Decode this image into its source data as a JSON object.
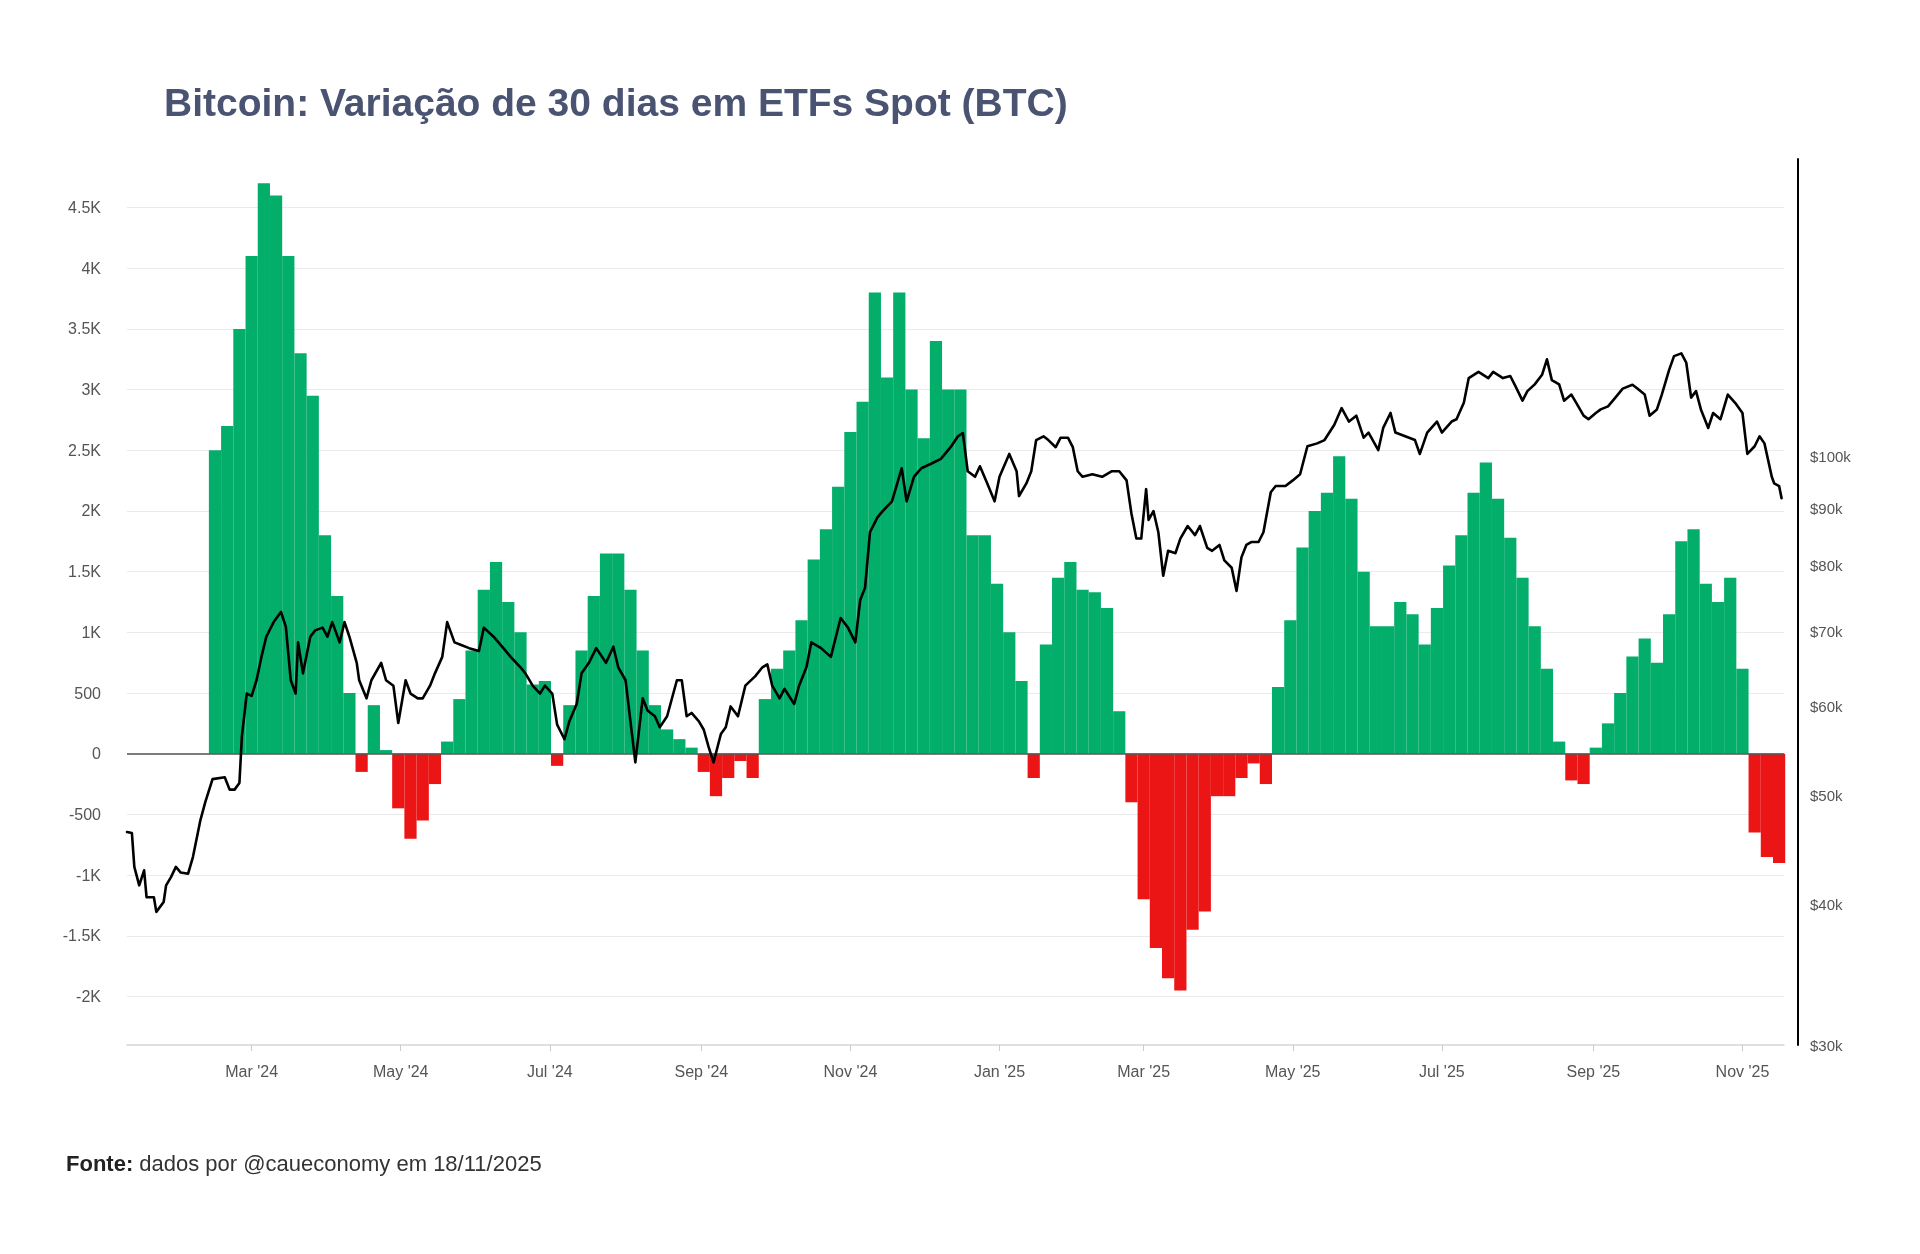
{
  "chart_data": {
    "type": "bar",
    "title": "Bitcoin: Variação de 30 dias em ETFs Spot (BTC)",
    "annotations": [
      "Fonte: dados por @caueconomy em 18/11/2025"
    ],
    "series": [
      {
        "x": [
          "2024-02-15",
          "2024-02-20",
          "2024-02-25",
          "2024-03-01",
          "2024-03-06",
          "2024-03-11",
          "2024-03-16",
          "2024-03-21",
          "2024-03-26",
          "2024-03-31",
          "2024-04-05",
          "2024-04-10",
          "2024-04-15",
          "2024-04-20",
          "2024-04-25",
          "2024-04-30",
          "2024-05-05",
          "2024-05-10",
          "2024-05-15",
          "2024-05-20",
          "2024-05-25",
          "2024-05-30",
          "2024-06-04",
          "2024-06-09",
          "2024-06-14",
          "2024-06-19",
          "2024-06-24",
          "2024-06-29",
          "2024-07-04",
          "2024-07-09",
          "2024-07-14",
          "2024-07-19",
          "2024-07-24",
          "2024-07-29",
          "2024-08-03",
          "2024-08-08",
          "2024-08-13",
          "2024-08-18",
          "2024-08-23",
          "2024-08-28",
          "2024-09-02",
          "2024-09-07",
          "2024-09-12",
          "2024-09-17",
          "2024-09-22",
          "2024-09-27",
          "2024-10-02",
          "2024-10-07",
          "2024-10-12",
          "2024-10-17",
          "2024-10-22",
          "2024-10-27",
          "2024-11-01",
          "2024-11-06",
          "2024-11-11",
          "2024-11-16",
          "2024-11-21",
          "2024-11-26",
          "2024-12-01",
          "2024-12-06",
          "2024-12-11",
          "2024-12-16",
          "2024-12-21",
          "2024-12-26",
          "2024-12-31",
          "2025-01-05",
          "2025-01-10",
          "2025-01-15",
          "2025-01-20",
          "2025-01-25",
          "2025-01-30",
          "2025-02-04",
          "2025-02-09",
          "2025-02-14",
          "2025-02-19",
          "2025-02-24",
          "2025-03-01",
          "2025-03-06",
          "2025-03-11",
          "2025-03-16",
          "2025-03-21",
          "2025-03-26",
          "2025-03-31",
          "2025-04-05",
          "2025-04-10",
          "2025-04-15",
          "2025-04-20",
          "2025-04-25",
          "2025-04-30",
          "2025-05-05",
          "2025-05-10",
          "2025-05-15",
          "2025-05-20",
          "2025-05-25",
          "2025-05-30",
          "2025-06-04",
          "2025-06-09",
          "2025-06-14",
          "2025-06-19",
          "2025-06-24",
          "2025-06-29",
          "2025-07-04",
          "2025-07-09",
          "2025-07-14",
          "2025-07-19",
          "2025-07-24",
          "2025-07-29",
          "2025-08-03",
          "2025-08-08",
          "2025-08-13",
          "2025-08-18",
          "2025-08-23",
          "2025-08-28",
          "2025-09-02",
          "2025-09-07",
          "2025-09-12",
          "2025-09-17",
          "2025-09-22",
          "2025-09-27",
          "2025-10-02",
          "2025-10-07",
          "2025-10-12",
          "2025-10-17",
          "2025-10-22",
          "2025-10-27",
          "2025-11-01",
          "2025-11-06",
          "2025-11-11",
          "2025-11-16"
        ],
        "values": [
          2500,
          2700,
          3500,
          4100,
          4700,
          4600,
          4100,
          3300,
          2950,
          1800,
          1300,
          500,
          -150,
          400,
          30,
          -450,
          -700,
          -550,
          -250,
          100,
          450,
          850,
          1350,
          1580,
          1250,
          1000,
          570,
          600,
          -100,
          400,
          850,
          1300,
          1650,
          1650,
          1350,
          850,
          400,
          200,
          120,
          50,
          -150,
          -350,
          -200,
          -60,
          -200,
          450,
          700,
          850,
          1100,
          1600,
          1850,
          2200,
          2650,
          2900,
          3800,
          3100,
          3800,
          3000,
          2600,
          3400,
          3000,
          3000,
          1800,
          1800,
          1400,
          1000,
          600,
          -200,
          900,
          1450,
          1580,
          1350,
          1330,
          1200,
          350,
          -400,
          -1200,
          -1600,
          -1850,
          -1950,
          -1450,
          -1300,
          -350,
          -350,
          -200,
          -80,
          -250,
          550,
          1100,
          1700,
          2000,
          2150,
          2450,
          2100,
          1500,
          1050,
          1050,
          1250,
          1150,
          900,
          1200,
          1550,
          1800,
          2150,
          2400,
          2100,
          1780,
          1450,
          1050,
          700,
          100,
          -220,
          -250,
          50,
          250,
          500,
          800,
          950,
          750,
          1150,
          1750,
          1850,
          1400,
          1250,
          1450,
          700,
          -650,
          -850,
          -900
        ],
        "colors": [
          "#03ad6a",
          "#03ad6a",
          "#03ad6a",
          "#03ad6a",
          "#03ad6a",
          "#03ad6a",
          "#03ad6a",
          "#03ad6a",
          "#03ad6a",
          "#03ad6a",
          "#03ad6a",
          "#03ad6a",
          "#eb1515",
          "#03ad6a",
          "#03ad6a",
          "#eb1515",
          "#eb1515",
          "#eb1515",
          "#eb1515",
          "#03ad6a",
          "#03ad6a",
          "#03ad6a",
          "#03ad6a",
          "#03ad6a",
          "#03ad6a",
          "#03ad6a",
          "#03ad6a",
          "#03ad6a",
          "#eb1515",
          "#03ad6a",
          "#03ad6a",
          "#03ad6a",
          "#03ad6a",
          "#03ad6a",
          "#03ad6a",
          "#03ad6a",
          "#03ad6a",
          "#03ad6a",
          "#03ad6a",
          "#03ad6a",
          "#eb1515",
          "#eb1515",
          "#eb1515",
          "#eb1515",
          "#eb1515",
          "#03ad6a",
          "#03ad6a",
          "#03ad6a",
          "#03ad6a",
          "#03ad6a",
          "#03ad6a",
          "#03ad6a",
          "#03ad6a",
          "#03ad6a",
          "#03ad6a",
          "#03ad6a",
          "#03ad6a",
          "#03ad6a",
          "#03ad6a",
          "#03ad6a",
          "#03ad6a",
          "#03ad6a",
          "#03ad6a",
          "#03ad6a",
          "#03ad6a",
          "#03ad6a",
          "#03ad6a",
          "#eb1515",
          "#03ad6a",
          "#03ad6a",
          "#03ad6a",
          "#03ad6a",
          "#03ad6a",
          "#03ad6a",
          "#03ad6a",
          "#eb1515",
          "#eb1515",
          "#eb1515",
          "#eb1515",
          "#eb1515",
          "#eb1515",
          "#eb1515",
          "#eb1515",
          "#eb1515",
          "#eb1515",
          "#eb1515",
          "#eb1515",
          "#03ad6a",
          "#03ad6a",
          "#03ad6a",
          "#03ad6a",
          "#03ad6a",
          "#03ad6a",
          "#03ad6a",
          "#03ad6a",
          "#03ad6a",
          "#03ad6a",
          "#03ad6a",
          "#03ad6a",
          "#03ad6a",
          "#03ad6a",
          "#03ad6a",
          "#03ad6a",
          "#03ad6a",
          "#03ad6a",
          "#03ad6a",
          "#03ad6a",
          "#03ad6a",
          "#03ad6a",
          "#03ad6a",
          "#03ad6a",
          "#eb1515",
          "#eb1515",
          "#03ad6a",
          "#03ad6a",
          "#03ad6a",
          "#03ad6a",
          "#03ad6a",
          "#03ad6a",
          "#03ad6a",
          "#03ad6a",
          "#03ad6a",
          "#03ad6a",
          "#03ad6a",
          "#03ad6a",
          "#03ad6a",
          "#eb1515",
          "#eb1515",
          "#eb1515"
        ]
      },
      {
        "type": "line",
        "axis": "y2",
        "color": "#000000",
        "x": [
          "2024-01-10",
          "2024-01-12",
          "2024-01-13",
          "2024-01-15",
          "2024-01-17",
          "2024-01-18",
          "2024-01-21",
          "2024-01-22",
          "2024-01-25",
          "2024-01-26",
          "2024-01-28",
          "2024-01-30",
          "2024-02-01",
          "2024-02-04",
          "2024-02-06",
          "2024-02-09",
          "2024-02-11",
          "2024-02-14",
          "2024-02-19",
          "2024-02-21",
          "2024-02-23",
          "2024-02-25",
          "2024-02-26",
          "2024-02-28",
          "2024-03-01",
          "2024-03-03",
          "2024-03-05",
          "2024-03-07",
          "2024-03-10",
          "2024-03-13",
          "2024-03-15",
          "2024-03-17",
          "2024-03-19",
          "2024-03-20",
          "2024-03-22",
          "2024-03-25",
          "2024-03-27",
          "2024-03-30",
          "2024-04-01",
          "2024-04-03",
          "2024-04-06",
          "2024-04-08",
          "2024-04-10",
          "2024-04-13",
          "2024-04-14",
          "2024-04-17",
          "2024-04-19",
          "2024-04-23",
          "2024-04-25",
          "2024-04-28",
          "2024-04-30",
          "2024-05-03",
          "2024-05-05",
          "2024-05-08",
          "2024-05-10",
          "2024-05-13",
          "2024-05-15",
          "2024-05-18",
          "2024-05-20",
          "2024-05-23",
          "2024-05-26",
          "2024-05-29",
          "2024-06-02",
          "2024-06-04",
          "2024-06-08",
          "2024-06-12",
          "2024-06-15",
          "2024-06-19",
          "2024-06-21",
          "2024-06-24",
          "2024-06-27",
          "2024-06-29",
          "2024-07-02",
          "2024-07-04",
          "2024-07-07",
          "2024-07-09",
          "2024-07-12",
          "2024-07-14",
          "2024-07-17",
          "2024-07-20",
          "2024-07-24",
          "2024-07-27",
          "2024-07-29",
          "2024-08-01",
          "2024-08-03",
          "2024-08-05",
          "2024-08-08",
          "2024-08-10",
          "2024-08-13",
          "2024-08-15",
          "2024-08-18",
          "2024-08-22",
          "2024-08-24",
          "2024-08-26",
          "2024-08-28",
          "2024-08-31",
          "2024-09-02",
          "2024-09-04",
          "2024-09-06",
          "2024-09-09",
          "2024-09-11",
          "2024-09-13",
          "2024-09-16",
          "2024-09-19",
          "2024-09-23",
          "2024-09-26",
          "2024-09-28",
          "2024-09-30",
          "2024-10-03",
          "2024-10-05",
          "2024-10-09",
          "2024-10-11",
          "2024-10-14",
          "2024-10-16",
          "2024-10-20",
          "2024-10-24",
          "2024-10-28",
          "2024-10-31",
          "2024-11-03",
          "2024-11-05",
          "2024-11-07",
          "2024-11-09",
          "2024-11-12",
          "2024-11-14",
          "2024-11-18",
          "2024-11-22",
          "2024-11-24",
          "2024-11-27",
          "2024-11-30",
          "2024-12-04",
          "2024-12-08",
          "2024-12-12",
          "2024-12-15",
          "2024-12-17",
          "2024-12-19",
          "2024-12-22",
          "2024-12-24",
          "2024-12-27",
          "2024-12-30",
          "2025-01-01",
          "2025-01-05",
          "2025-01-08",
          "2025-01-09",
          "2025-01-12",
          "2025-01-14",
          "2025-01-16",
          "2025-01-19",
          "2025-01-21",
          "2025-01-24",
          "2025-01-26",
          "2025-01-29",
          "2025-01-31",
          "2025-02-02",
          "2025-02-04",
          "2025-02-08",
          "2025-02-12",
          "2025-02-16",
          "2025-02-19",
          "2025-02-22",
          "2025-02-24",
          "2025-02-26",
          "2025-02-28",
          "2025-03-02",
          "2025-03-03",
          "2025-03-05",
          "2025-03-07",
          "2025-03-09",
          "2025-03-11",
          "2025-03-14",
          "2025-03-16",
          "2025-03-19",
          "2025-03-22",
          "2025-03-24",
          "2025-03-27",
          "2025-03-29",
          "2025-04-01",
          "2025-04-03",
          "2025-04-06",
          "2025-04-08",
          "2025-04-10",
          "2025-04-12",
          "2025-04-14",
          "2025-04-17",
          "2025-04-19",
          "2025-04-22",
          "2025-04-24",
          "2025-04-28",
          "2025-05-01",
          "2025-05-04",
          "2025-05-07",
          "2025-05-11",
          "2025-05-14",
          "2025-05-18",
          "2025-05-21",
          "2025-05-24",
          "2025-05-27",
          "2025-05-30",
          "2025-06-01",
          "2025-06-05",
          "2025-06-07",
          "2025-06-10",
          "2025-06-12",
          "2025-06-16",
          "2025-06-20",
          "2025-06-22",
          "2025-06-25",
          "2025-06-29",
          "2025-07-01",
          "2025-07-05",
          "2025-07-07",
          "2025-07-10",
          "2025-07-12",
          "2025-07-16",
          "2025-07-20",
          "2025-07-22",
          "2025-07-26",
          "2025-07-29",
          "2025-07-31",
          "2025-08-03",
          "2025-08-05",
          "2025-08-08",
          "2025-08-11",
          "2025-08-13",
          "2025-08-15",
          "2025-08-18",
          "2025-08-20",
          "2025-08-23",
          "2025-08-25",
          "2025-08-28",
          "2025-08-30",
          "2025-09-02",
          "2025-09-04",
          "2025-09-07",
          "2025-09-10",
          "2025-09-13",
          "2025-09-17",
          "2025-09-19",
          "2025-09-22",
          "2025-09-24",
          "2025-09-27",
          "2025-09-29",
          "2025-10-02",
          "2025-10-04",
          "2025-10-07",
          "2025-10-09",
          "2025-10-11",
          "2025-10-13",
          "2025-10-15",
          "2025-10-18",
          "2025-10-20",
          "2025-10-23",
          "2025-10-26",
          "2025-10-29",
          "2025-11-01",
          "2025-11-03",
          "2025-11-06",
          "2025-11-08",
          "2025-11-10",
          "2025-11-13",
          "2025-11-14",
          "2025-11-16",
          "2025-11-17"
        ],
        "values": [
          46400,
          46300,
          43200,
          41600,
          42900,
          40600,
          40600,
          39400,
          40200,
          41600,
          42300,
          43200,
          42700,
          42600,
          44100,
          47500,
          49300,
          51700,
          51900,
          50600,
          50600,
          51300,
          56400,
          61600,
          61300,
          63300,
          66400,
          69200,
          71300,
          72800,
          70600,
          63300,
          61600,
          68400,
          64200,
          69200,
          70100,
          70500,
          69200,
          71300,
          68400,
          71300,
          69200,
          65600,
          63300,
          61000,
          63300,
          65600,
          63300,
          62600,
          58000,
          63300,
          61600,
          61000,
          61000,
          62600,
          64200,
          66400,
          71300,
          68400,
          68000,
          67600,
          67200,
          70500,
          69200,
          67600,
          66400,
          65000,
          64200,
          62600,
          61600,
          62600,
          61600,
          57800,
          56100,
          58200,
          60300,
          64200,
          65600,
          67600,
          65600,
          67800,
          65000,
          63300,
          58200,
          53500,
          61000,
          59500,
          58800,
          57500,
          58800,
          63300,
          63300,
          58800,
          59200,
          58200,
          57200,
          55200,
          53500,
          56700,
          57500,
          60000,
          58800,
          62600,
          63800,
          65000,
          65400,
          62600,
          61000,
          62200,
          60300,
          62600,
          65000,
          68400,
          67600,
          66400,
          71900,
          70500,
          68400,
          74600,
          76500,
          85700,
          88300,
          89400,
          91300,
          97700,
          91300,
          96000,
          97700,
          98600,
          99600,
          102000,
          104300,
          105000,
          97100,
          96000,
          98100,
          94700,
          91300,
          96000,
          100600,
          97100,
          92300,
          94700,
          97100,
          103500,
          104300,
          103500,
          102000,
          104000,
          104000,
          102000,
          97100,
          96000,
          96500,
          96000,
          97100,
          97100,
          95300,
          89000,
          84600,
          84600,
          93600,
          87900,
          89500,
          85700,
          78400,
          82500,
          82100,
          84600,
          86800,
          85200,
          86800,
          83000,
          82500,
          83500,
          80900,
          79700,
          76000,
          81400,
          83500,
          84000,
          84000,
          85700,
          93000,
          94200,
          94200,
          95300,
          96500,
          102200,
          102800,
          103500,
          106800,
          110500,
          107500,
          108800,
          104000,
          105100,
          101400,
          106100,
          109400,
          105100,
          104300,
          103500,
          100600,
          105100,
          107500,
          105100,
          107500,
          108000,
          111700,
          117500,
          119000,
          117500,
          119000,
          117500,
          118000,
          115700,
          112200,
          114400,
          116000,
          118300,
          122100,
          117000,
          116000,
          112200,
          113600,
          111700,
          108800,
          108000,
          109400,
          110200,
          110900,
          112900,
          115000,
          115900,
          115000,
          113600,
          108800,
          110200,
          113600,
          119500,
          122900,
          123600,
          121300,
          112900,
          114400,
          110200,
          106100,
          109400,
          108000,
          113600,
          111700,
          109400,
          100600,
          102200,
          104300,
          102800,
          96000,
          94700,
          94200,
          91900
        ]
      }
    ],
    "xlim": [
      "2024-01-10",
      "2025-11-18"
    ],
    "xticks": [
      {
        "value": "2024-03-01",
        "label": "Mar '24"
      },
      {
        "value": "2024-05-01",
        "label": "May '24"
      },
      {
        "value": "2024-07-01",
        "label": "Jul '24"
      },
      {
        "value": "2024-09-01",
        "label": "Sep '24"
      },
      {
        "value": "2024-11-01",
        "label": "Nov '24"
      },
      {
        "value": "2025-01-01",
        "label": "Jan '25"
      },
      {
        "value": "2025-03-01",
        "label": "Mar '25"
      },
      {
        "value": "2025-05-01",
        "label": "May '25"
      },
      {
        "value": "2025-07-01",
        "label": "Jul '25"
      },
      {
        "value": "2025-09-01",
        "label": "Sep '25"
      },
      {
        "value": "2025-11-01",
        "label": "Nov '25"
      }
    ],
    "ylim": [
      -2400,
      4900
    ],
    "yticks": [
      {
        "value": -2000,
        "label": "-2K"
      },
      {
        "value": -1500,
        "label": "-1.5K"
      },
      {
        "value": -1000,
        "label": "-1K"
      },
      -500,
      0,
      500,
      {
        "value": 1000,
        "label": "1K"
      },
      {
        "value": 1500,
        "label": "1.5K"
      },
      {
        "value": 2000,
        "label": "2K"
      },
      {
        "value": 2500,
        "label": "2.5K"
      },
      {
        "value": 3000,
        "label": "3K"
      },
      {
        "value": 3500,
        "label": "3.5K"
      },
      {
        "value": 4000,
        "label": "4K"
      },
      {
        "value": 4500,
        "label": "4.5K"
      }
    ],
    "y2lim": [
      30000,
      184000
    ],
    "y2ticks": [
      {
        "value": 30000,
        "label": "$30k"
      },
      {
        "value": 40000,
        "label": "$40k"
      },
      {
        "value": 50000,
        "label": "$50k"
      },
      {
        "value": 60000,
        "label": "$60k"
      },
      {
        "value": 70000,
        "label": "$70k"
      },
      {
        "value": 80000,
        "label": "$80k"
      },
      {
        "value": 90000,
        "label": "$90k"
      },
      {
        "value": 100000,
        "label": "$100k"
      }
    ],
    "log": "y2",
    "grid": "y",
    "ref_lines": [
      {
        "axis": "y",
        "value": 0,
        "color": "#555555"
      }
    ]
  }
}
